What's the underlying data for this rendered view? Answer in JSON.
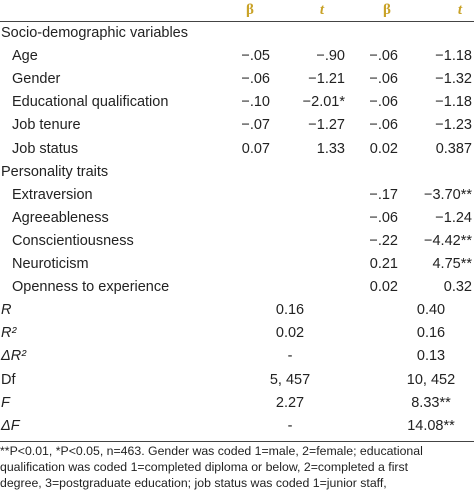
{
  "table": {
    "header": [
      "β",
      "t",
      "β",
      "t"
    ],
    "sections": [
      {
        "title": "Socio-demographic variables",
        "rows": [
          {
            "label": "Age",
            "cells": [
              "−.05",
              "−.90",
              "−.06",
              "−1.18"
            ]
          },
          {
            "label": "Gender",
            "cells": [
              "−.06",
              "−1.21",
              "−.06",
              "−1.32"
            ]
          },
          {
            "label": "Educational qualification",
            "cells": [
              "−.10",
              "−2.01*",
              "−.06",
              "−1.18"
            ]
          },
          {
            "label": "Job tenure",
            "cells": [
              "−.07",
              "−1.27",
              "−.06",
              "−1.23"
            ]
          },
          {
            "label": "Job status",
            "cells": [
              "0.07",
              "1.33",
              "0.02",
              "0.387"
            ]
          }
        ]
      },
      {
        "title": "Personality traits",
        "rows": [
          {
            "label": "Extraversion",
            "cells": [
              null,
              null,
              "−.17",
              "−3.70**"
            ]
          },
          {
            "label": "Agreeableness",
            "cells": [
              null,
              null,
              "−.06",
              "−1.24"
            ]
          },
          {
            "label": "Conscientiousness",
            "cells": [
              null,
              null,
              "−.22",
              "−4.42**"
            ]
          },
          {
            "label": "Neuroticism",
            "cells": [
              null,
              null,
              "0.21",
              "4.75**"
            ]
          },
          {
            "label": "Openness to experience",
            "cells": [
              null,
              null,
              "0.02",
              "0.32"
            ]
          }
        ]
      }
    ],
    "stats": [
      {
        "label": "R",
        "cells": [
          "0.16",
          "0.40"
        ]
      },
      {
        "label": "R²",
        "cells": [
          "0.02",
          "0.16"
        ]
      },
      {
        "label": "ΔR²",
        "cells": [
          "-",
          "0.13"
        ]
      },
      {
        "label": "Df",
        "cells": [
          "5, 457",
          "10, 452"
        ]
      },
      {
        "label": "F",
        "cells": [
          "2.27",
          "8.33**"
        ]
      },
      {
        "label": "ΔF",
        "cells": [
          "-",
          "14.08**"
        ]
      }
    ],
    "footnote": [
      "**P<0.01, *P<0.05, n=463. Gender was coded 1=male, 2=female; educational",
      "qualification was coded 1=completed diploma or below, 2=completed a first",
      "degree, 3=postgraduate education; job status was coded 1=junior staff,"
    ]
  }
}
